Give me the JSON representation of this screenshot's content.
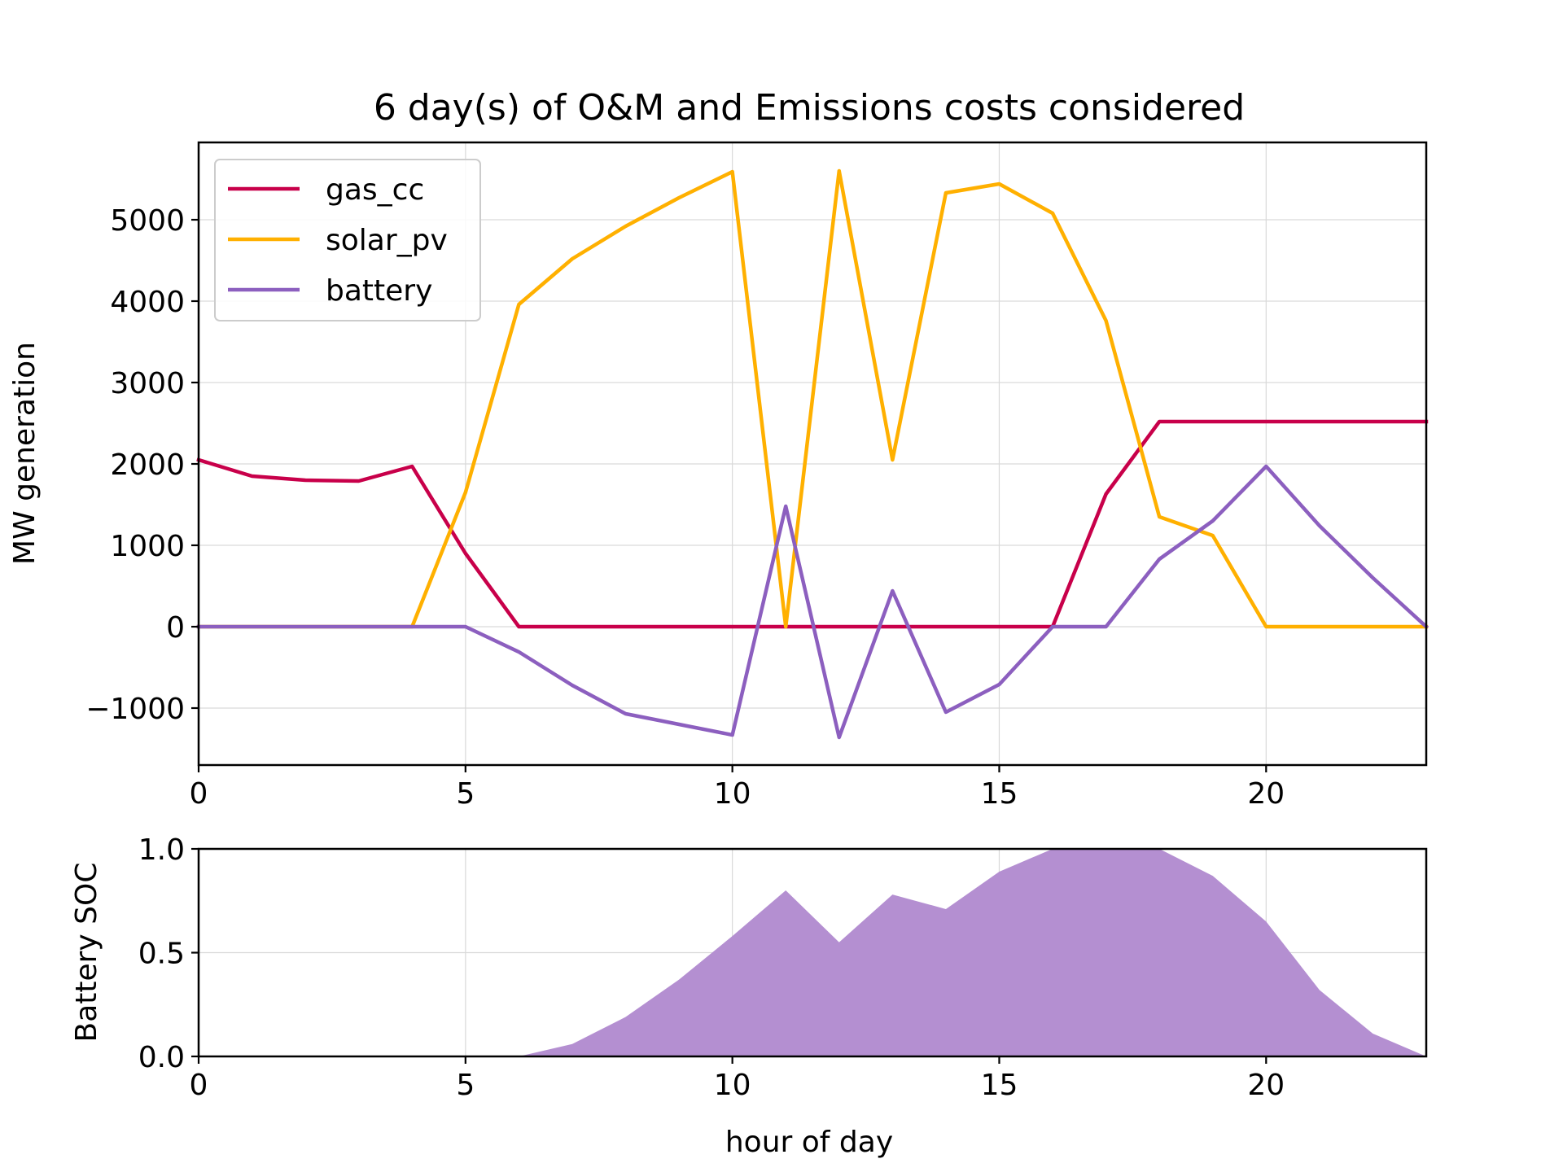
{
  "chart_data": [
    {
      "type": "line",
      "title": "6 day(s) of O&M and Emissions costs considered",
      "xlabel": "",
      "ylabel": "MW generation",
      "xlim": [
        0,
        23
      ],
      "ylim": [
        -1700,
        5950
      ],
      "xticks": [
        0,
        5,
        10,
        15,
        20
      ],
      "yticks": [
        -1000,
        0,
        1000,
        2000,
        3000,
        4000,
        5000
      ],
      "ytick_labels": [
        "−1000",
        "0",
        "1000",
        "2000",
        "3000",
        "4000",
        "5000"
      ],
      "grid": true,
      "legend": "top-left",
      "x": [
        0,
        1,
        2,
        3,
        4,
        5,
        6,
        7,
        8,
        9,
        10,
        11,
        12,
        13,
        14,
        15,
        16,
        17,
        18,
        19,
        20,
        21,
        22,
        23
      ],
      "series": [
        {
          "name": "gas_cc",
          "color": "#c8004a",
          "values": [
            2050,
            1850,
            1800,
            1790,
            1970,
            900,
            0,
            0,
            0,
            0,
            0,
            0,
            0,
            0,
            0,
            0,
            0,
            1630,
            2520,
            2520,
            2520,
            2520,
            2520,
            2520
          ]
        },
        {
          "name": "solar_pv",
          "color": "#ffb000",
          "values": [
            0,
            0,
            0,
            0,
            0,
            1650,
            3960,
            4520,
            4920,
            5270,
            5590,
            0,
            5600,
            2050,
            5330,
            5440,
            5080,
            3760,
            1350,
            1120,
            0,
            0,
            0,
            0
          ]
        },
        {
          "name": "battery",
          "color": "#8c5fbf",
          "values": [
            0,
            0,
            0,
            0,
            0,
            0,
            -310,
            -720,
            -1070,
            -1200,
            -1330,
            1480,
            -1360,
            440,
            -1050,
            -710,
            0,
            0,
            830,
            1300,
            1970,
            1240,
            600,
            0
          ]
        }
      ]
    },
    {
      "type": "area",
      "title": "",
      "xlabel": "hour of day",
      "ylabel": "Battery SOC",
      "xlim": [
        0,
        23
      ],
      "ylim": [
        0,
        1
      ],
      "xticks": [
        0,
        5,
        10,
        15,
        20
      ],
      "yticks": [
        0.0,
        0.5,
        1.0
      ],
      "ytick_labels": [
        "0.0",
        "0.5",
        "1.0"
      ],
      "grid": true,
      "x": [
        0,
        1,
        2,
        3,
        4,
        5,
        6,
        7,
        8,
        9,
        10,
        11,
        12,
        13,
        14,
        15,
        16,
        17,
        18,
        19,
        20,
        21,
        22,
        23
      ],
      "series": [
        {
          "color": "#b48fd1",
          "values": [
            0,
            0,
            0,
            0,
            0,
            0,
            0,
            0.06,
            0.19,
            0.37,
            0.58,
            0.8,
            0.55,
            0.78,
            0.71,
            0.89,
            1.0,
            1.0,
            1.0,
            0.87,
            0.65,
            0.32,
            0.11,
            0
          ]
        }
      ]
    }
  ]
}
